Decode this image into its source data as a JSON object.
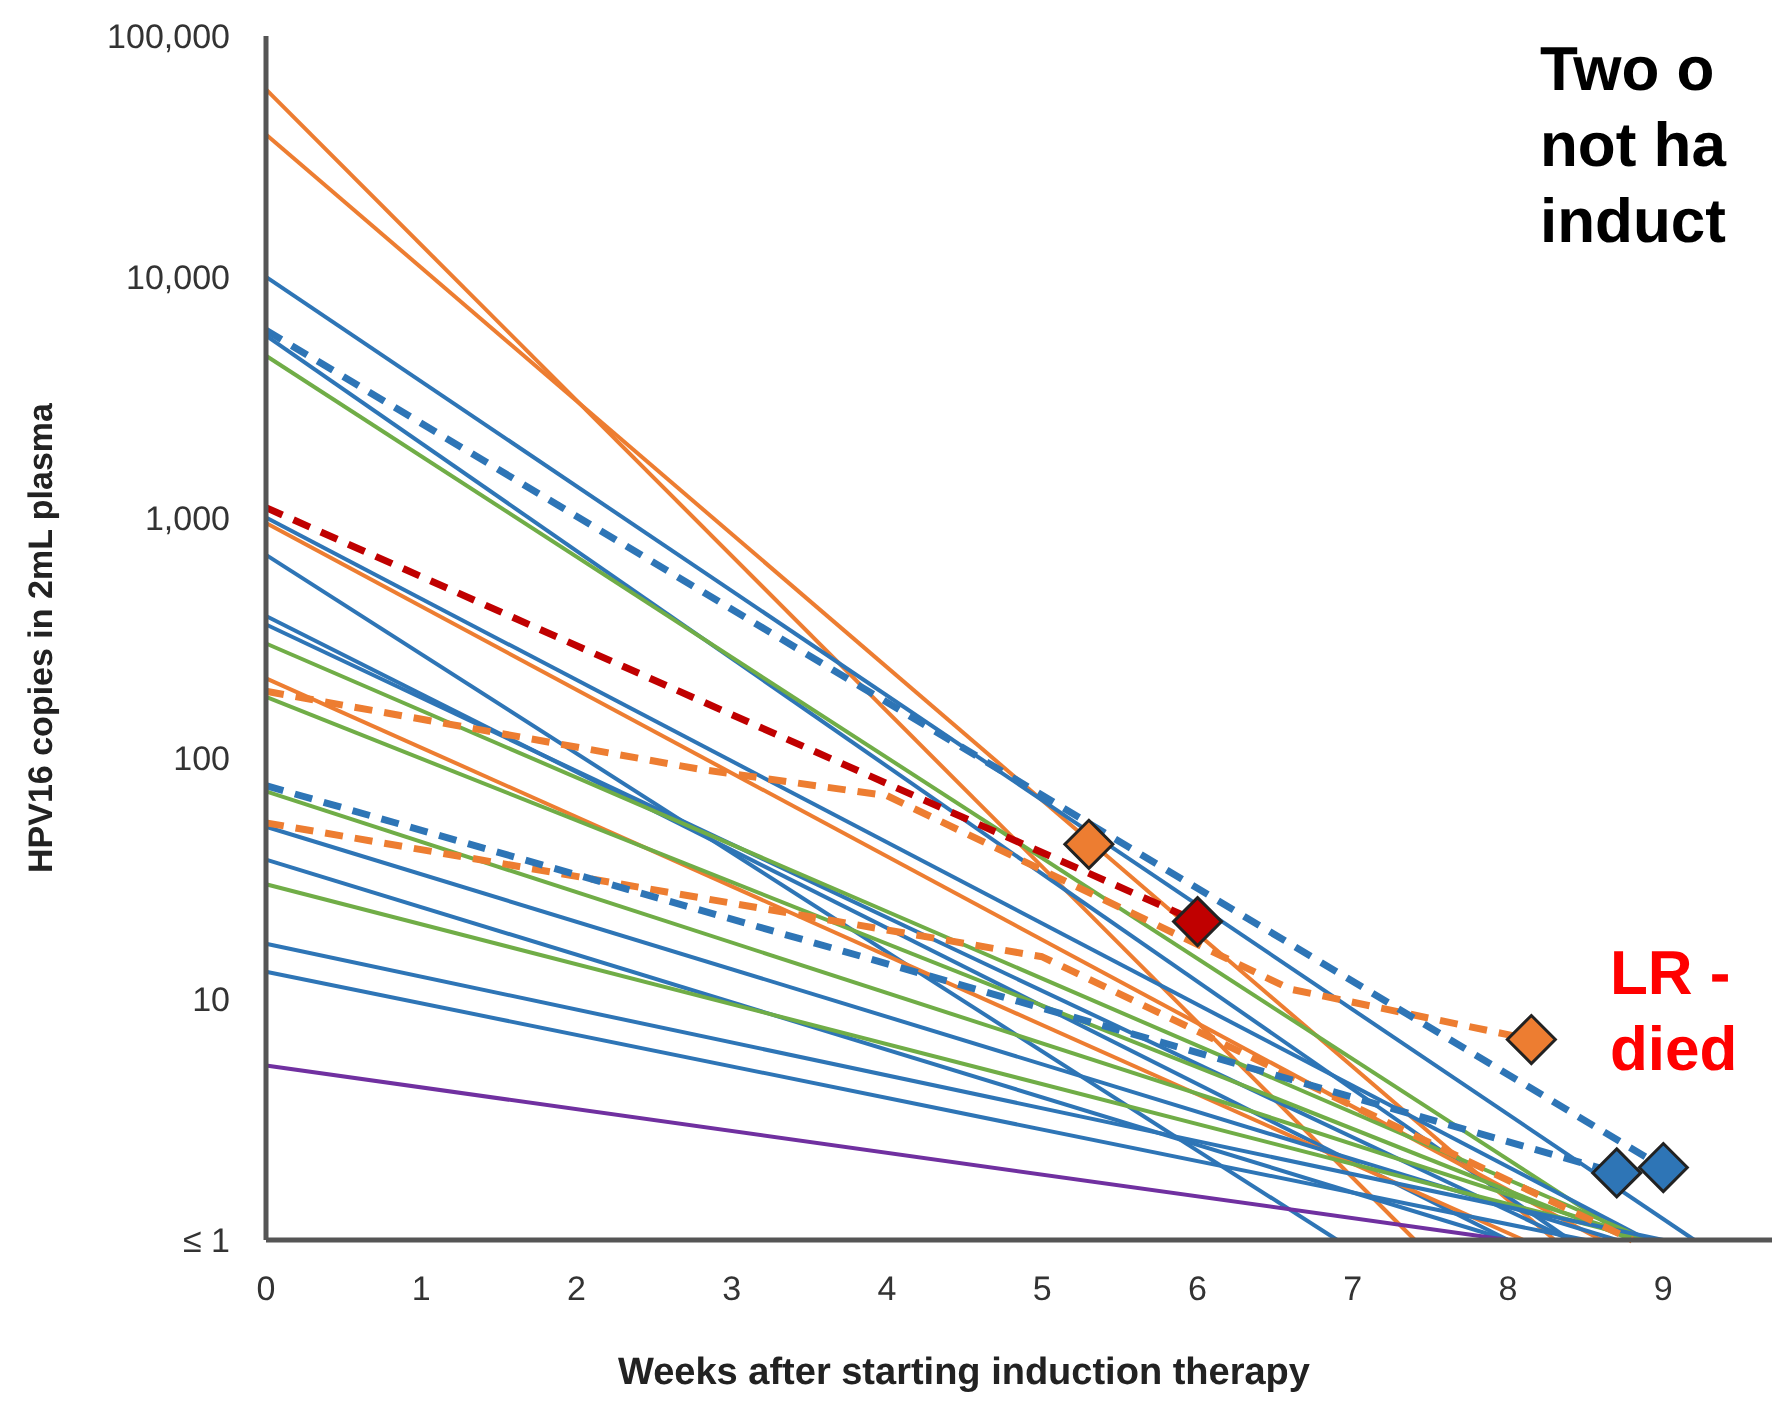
{
  "chart_data": {
    "type": "line",
    "xlabel": "Weeks after starting induction therapy",
    "ylabel": "HPV16 copies in 2mL plasma",
    "log": "y",
    "xlim": [
      0,
      9.7
    ],
    "ylim": [
      1,
      100000
    ],
    "xticks": [
      0,
      1,
      2,
      3,
      4,
      5,
      6,
      7,
      8,
      9
    ],
    "yticks": [
      {
        "value": 1,
        "label": "≤ 1"
      },
      {
        "value": 10,
        "label": "10"
      },
      {
        "value": 100,
        "label": "100"
      },
      {
        "value": 1000,
        "label": "1,000"
      },
      {
        "value": 10000,
        "label": "10,000"
      },
      {
        "value": 100000,
        "label": "100,000"
      }
    ],
    "grid": false,
    "annotations": [
      "Two o\nnot ha\ninduct",
      "LR -\ndied"
    ],
    "series": [
      {
        "color": "#ed7d31",
        "x": [
          0,
          7.4
        ],
        "values": [
          60000,
          1
        ],
        "line_style": "solid"
      },
      {
        "color": "#ed7d31",
        "x": [
          0,
          8.3
        ],
        "values": [
          39000,
          1
        ],
        "line_style": "solid"
      },
      {
        "color": "#2e75b6",
        "x": [
          0,
          9.2
        ],
        "values": [
          10000,
          1
        ],
        "line_style": "solid"
      },
      {
        "color": "#2e75b6",
        "x": [
          0,
          8.4
        ],
        "values": [
          5700,
          1
        ],
        "line_style": "solid"
      },
      {
        "color": "#70ad47",
        "x": [
          0,
          8.8
        ],
        "values": [
          4700,
          1
        ],
        "line_style": "solid"
      },
      {
        "color": "#ed7d31",
        "x": [
          0,
          8.6
        ],
        "values": [
          950,
          1
        ],
        "line_style": "solid"
      },
      {
        "color": "#2e75b6",
        "x": [
          0,
          8.9
        ],
        "values": [
          1000,
          1
        ],
        "line_style": "solid"
      },
      {
        "color": "#2e75b6",
        "x": [
          0,
          6.9
        ],
        "values": [
          700,
          1
        ],
        "line_style": "solid"
      },
      {
        "color": "#2e75b6",
        "x": [
          0,
          8.0
        ],
        "values": [
          390,
          1
        ],
        "line_style": "solid"
      },
      {
        "color": "#2e75b6",
        "x": [
          0,
          8.4
        ],
        "values": [
          360,
          1
        ],
        "line_style": "solid"
      },
      {
        "color": "#70ad47",
        "x": [
          0,
          8.9
        ],
        "values": [
          300,
          1
        ],
        "line_style": "solid"
      },
      {
        "color": "#ed7d31",
        "x": [
          0,
          8.1
        ],
        "values": [
          215,
          1
        ],
        "line_style": "solid"
      },
      {
        "color": "#70ad47",
        "x": [
          0,
          8.8
        ],
        "values": [
          180,
          1
        ],
        "line_style": "solid"
      },
      {
        "color": "#70ad47",
        "x": [
          0,
          8.9
        ],
        "values": [
          73,
          1
        ],
        "line_style": "solid"
      },
      {
        "color": "#2e75b6",
        "x": [
          0,
          8.7
        ],
        "values": [
          52,
          1
        ],
        "line_style": "solid"
      },
      {
        "color": "#2e75b6",
        "x": [
          0,
          8.0
        ],
        "values": [
          38,
          1
        ],
        "line_style": "solid"
      },
      {
        "color": "#70ad47",
        "x": [
          0,
          8.9
        ],
        "values": [
          30,
          1
        ],
        "line_style": "solid"
      },
      {
        "color": "#2e75b6",
        "x": [
          0,
          9.0
        ],
        "values": [
          17,
          1
        ],
        "line_style": "solid"
      },
      {
        "color": "#2e75b6",
        "x": [
          0,
          8.5
        ],
        "values": [
          13,
          1
        ],
        "line_style": "solid"
      },
      {
        "color": "#7030a0",
        "x": [
          0,
          8.0
        ],
        "values": [
          5.3,
          1
        ],
        "line_style": "solid"
      },
      {
        "color": "#c00000",
        "x": [
          0,
          6.0
        ],
        "values": [
          1100,
          21
        ],
        "line_style": "dashed"
      },
      {
        "color": "#ed7d31",
        "x": [
          0,
          2.8,
          4,
          6.6,
          8.15
        ],
        "values": [
          190,
          90,
          70,
          11,
          6.8
        ],
        "line_style": "dashed"
      },
      {
        "color": "#ed7d31",
        "x": [
          0,
          5,
          8.8
        ],
        "values": [
          54,
          15,
          1
        ],
        "line_style": "dashed"
      },
      {
        "color": "#2e75b6",
        "x": [
          0,
          9.0
        ],
        "values": [
          6000,
          2.0
        ],
        "line_style": "dashed"
      },
      {
        "color": "#2e75b6",
        "x": [
          0,
          8.7
        ],
        "values": [
          77,
          1.9
        ],
        "line_style": "dashed"
      },
      {
        "type": "scatter",
        "marker": "diamond",
        "color": "#ed7d31",
        "x": [
          5.3,
          8.15
        ],
        "values": [
          44,
          6.8
        ]
      },
      {
        "type": "scatter",
        "marker": "diamond",
        "color": "#c00000",
        "x": [
          6.0
        ],
        "values": [
          21
        ]
      },
      {
        "type": "scatter",
        "marker": "diamond",
        "color": "#2e75b6",
        "x": [
          8.7,
          9.0
        ],
        "values": [
          1.9,
          2.0
        ]
      }
    ]
  }
}
